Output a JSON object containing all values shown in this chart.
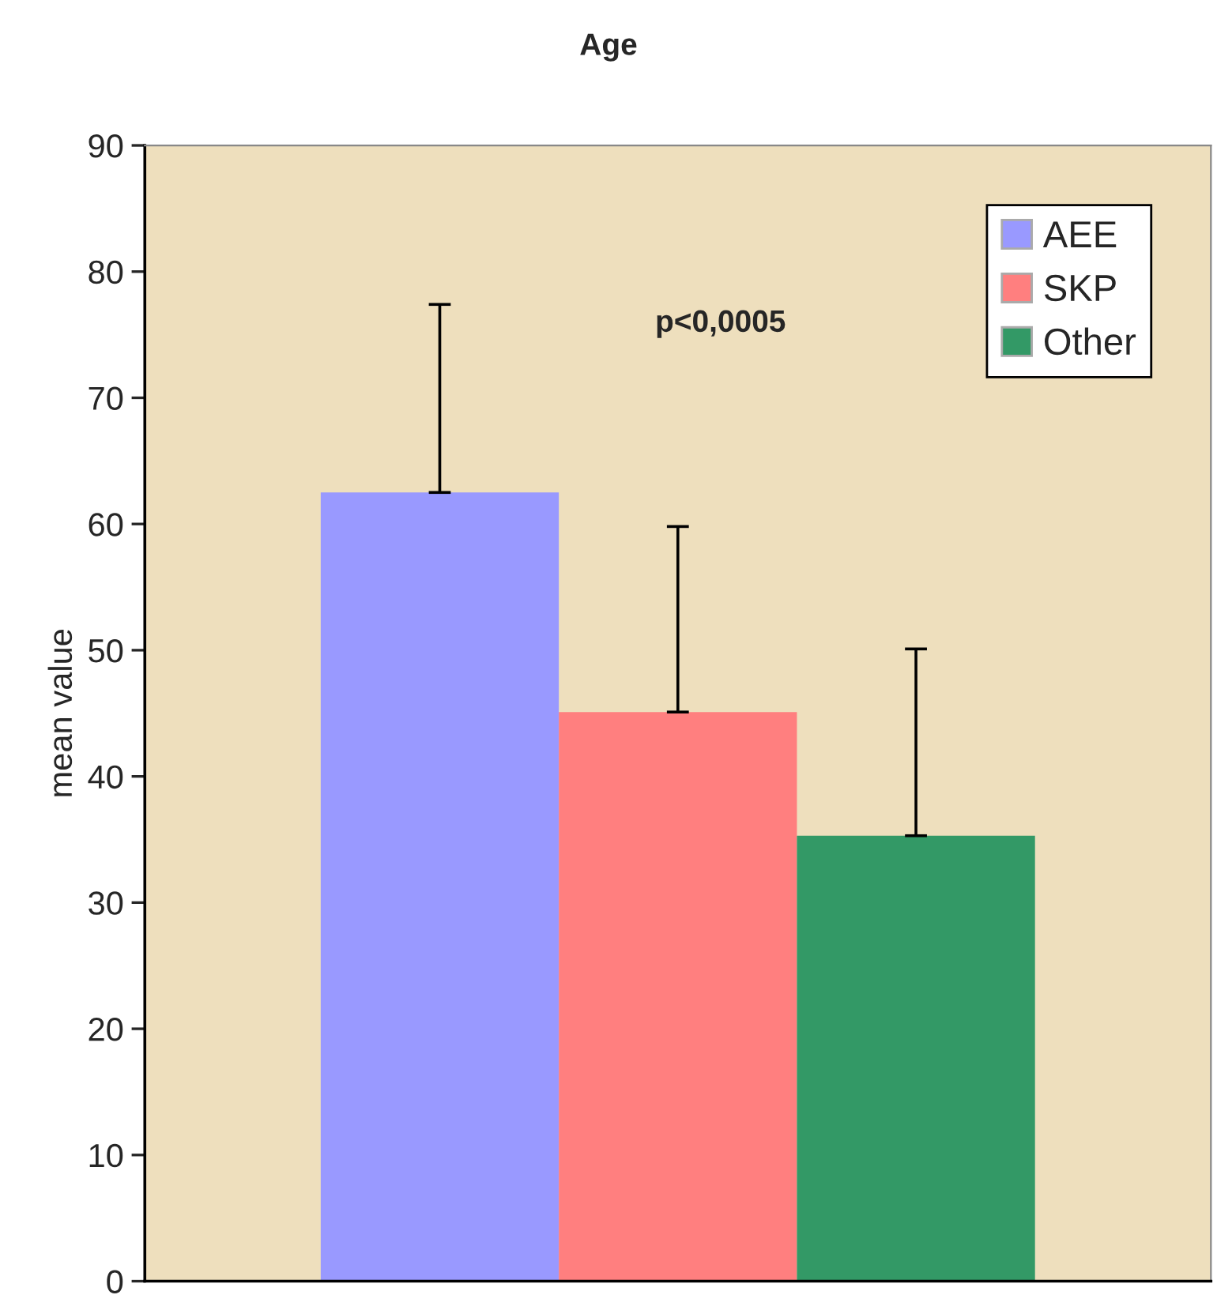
{
  "chart_data": {
    "type": "bar",
    "title": "Age",
    "ylabel": "mean value",
    "categories": [
      null
    ],
    "series": [
      {
        "name": "AEE",
        "color": "#9999ff",
        "values": [
          62.5
        ],
        "errors": [
          [
            62.5,
            77.4
          ]
        ]
      },
      {
        "name": "SKP",
        "color": "#ff7f7f",
        "values": [
          45.1
        ],
        "errors": [
          [
            45.1,
            59.8
          ]
        ]
      },
      {
        "name": "Other",
        "color": "#339966",
        "values": [
          35.3
        ],
        "errors": [
          [
            35.3,
            50.1
          ]
        ]
      }
    ],
    "ylim": [
      0,
      90
    ],
    "yticks": [
      0,
      10,
      20,
      30,
      40,
      50,
      60,
      70,
      80,
      90
    ],
    "annotations": [
      "p<0,0005"
    ],
    "legend": "top right",
    "grid": false
  }
}
